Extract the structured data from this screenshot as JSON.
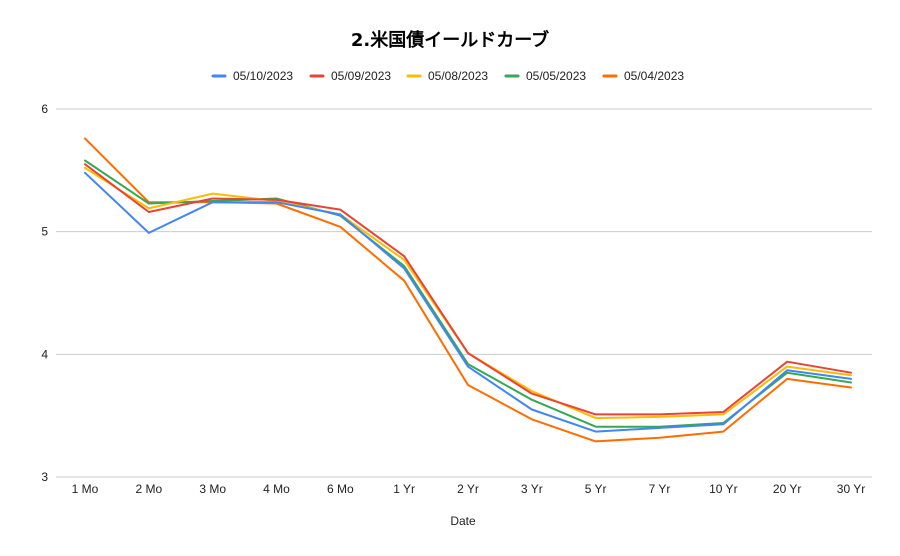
{
  "chart_data": {
    "type": "line",
    "title": "2.米国債イールドカーブ",
    "xlabel": "Date",
    "ylabel": "",
    "ylim": [
      3,
      6
    ],
    "yticks": [
      3,
      4,
      5,
      6
    ],
    "grid": true,
    "legend_position": "top",
    "categories": [
      "1 Mo",
      "2 Mo",
      "3 Mo",
      "4 Mo",
      "6 Mo",
      "1 Yr",
      "2 Yr",
      "3 Yr",
      "5 Yr",
      "7 Yr",
      "10 Yr",
      "20 Yr",
      "30 Yr"
    ],
    "series": [
      {
        "name": "05/10/2023",
        "color": "#4285F4",
        "values": [
          5.48,
          4.99,
          5.24,
          5.24,
          5.14,
          4.7,
          3.9,
          3.55,
          3.37,
          3.4,
          3.43,
          3.87,
          3.8
        ]
      },
      {
        "name": "05/09/2023",
        "color": "#EA4335",
        "values": [
          5.55,
          5.16,
          5.27,
          5.26,
          5.18,
          4.8,
          4.01,
          3.68,
          3.51,
          3.51,
          3.53,
          3.94,
          3.85
        ]
      },
      {
        "name": "05/08/2023",
        "color": "#FBBC04",
        "values": [
          5.52,
          5.19,
          5.31,
          5.25,
          5.14,
          4.77,
          4.01,
          3.7,
          3.48,
          3.49,
          3.51,
          3.9,
          3.83
        ]
      },
      {
        "name": "05/05/2023",
        "color": "#34A853",
        "values": [
          5.58,
          5.23,
          5.25,
          5.27,
          5.13,
          4.72,
          3.92,
          3.63,
          3.41,
          3.41,
          3.44,
          3.85,
          3.77
        ]
      },
      {
        "name": "05/04/2023",
        "color": "#FF6D01",
        "values": [
          5.76,
          5.24,
          5.24,
          5.23,
          5.04,
          4.6,
          3.75,
          3.47,
          3.29,
          3.32,
          3.37,
          3.8,
          3.73
        ]
      }
    ]
  }
}
